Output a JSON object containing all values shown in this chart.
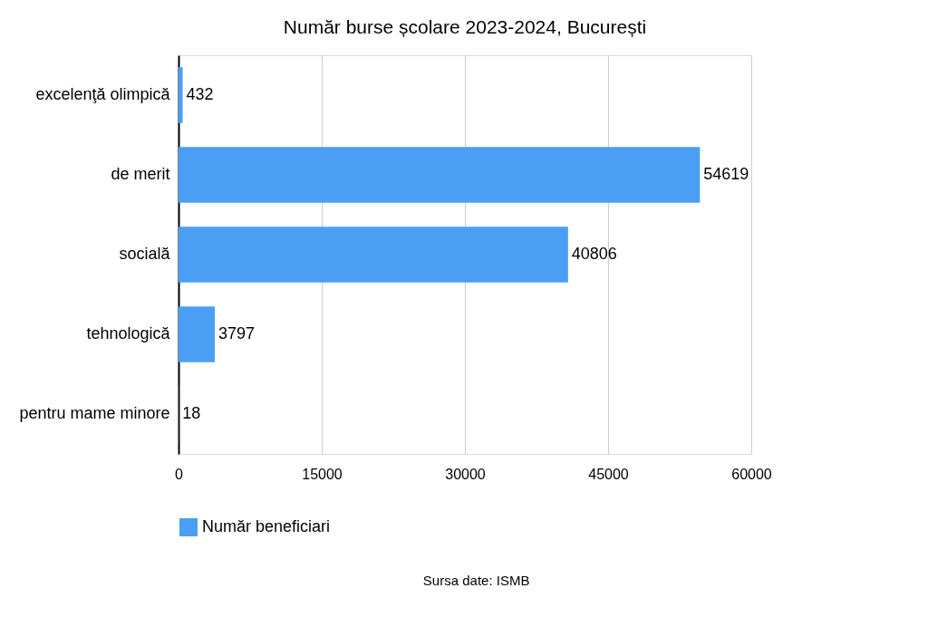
{
  "chart_data": {
    "type": "bar",
    "orientation": "horizontal",
    "title": "Număr burse școlare 2023-2024, București",
    "categories": [
      "excelenţă olimpică",
      "de merit",
      "socială",
      "tehnologică",
      "pentru mame minore"
    ],
    "series": [
      {
        "name": "Număr beneficiari",
        "color": "#4a9ff5",
        "values": [
          432,
          54619,
          40806,
          3797,
          18
        ]
      }
    ],
    "xlim": [
      0,
      60000
    ],
    "xticks": [
      0,
      15000,
      30000,
      45000,
      60000
    ],
    "grid": "x",
    "legend": "bottom",
    "data_labels": true,
    "annotations": [
      "Sursa date: ISMB"
    ]
  }
}
